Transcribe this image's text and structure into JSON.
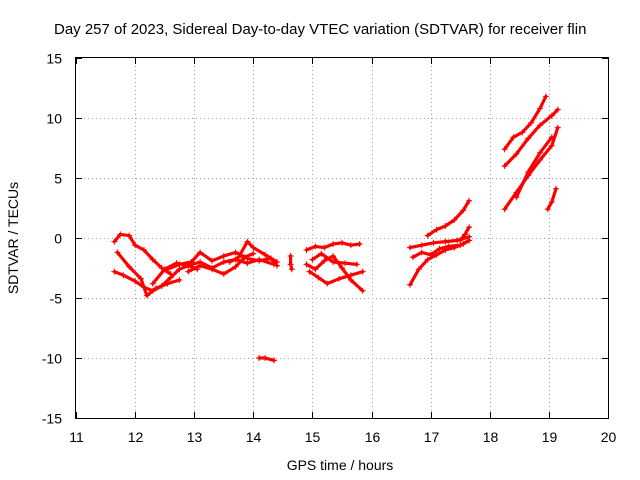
{
  "chart_data": {
    "type": "scatter",
    "title": "Day 257 of 2023, Sidereal Day-to-day VTEC variation (SDTVAR) for receiver flin",
    "xlabel": "GPS time / hours",
    "ylabel": "SDTVAR / TECUs",
    "xlim": [
      11,
      20
    ],
    "ylim": [
      -15,
      15
    ],
    "xticks": [
      "11",
      "12",
      "13",
      "14",
      "15",
      "16",
      "17",
      "18",
      "19",
      "20"
    ],
    "yticks": [
      "15",
      "10",
      "5",
      "0",
      "-5",
      "-10",
      "-15"
    ],
    "grid": true,
    "marker": "plus",
    "series_color": "#ff0000",
    "series": [
      {
        "name": "seg-1",
        "x": [
          11.65,
          11.75,
          11.9,
          12.0,
          12.15,
          12.3,
          12.45,
          12.6
        ],
        "y": [
          -0.3,
          0.3,
          0.2,
          -0.6,
          -1.0,
          -1.8,
          -2.5,
          -3.0
        ]
      },
      {
        "name": "seg-2",
        "x": [
          11.65,
          11.8,
          12.0,
          12.15,
          12.3,
          12.45,
          12.6,
          12.75,
          12.9,
          13.05
        ],
        "y": [
          -2.8,
          -3.1,
          -3.6,
          -4.1,
          -4.4,
          -4.0,
          -3.3,
          -2.6,
          -2.3,
          -2.6
        ]
      },
      {
        "name": "seg-3",
        "x": [
          11.7,
          11.9,
          12.1,
          12.2,
          12.35,
          12.55,
          12.75
        ],
        "y": [
          -1.2,
          -2.4,
          -3.4,
          -4.8,
          -4.2,
          -3.8,
          -3.5
        ]
      },
      {
        "name": "seg-4",
        "x": [
          12.3,
          12.5,
          12.7,
          12.9,
          13.1,
          13.3,
          13.5,
          13.7,
          13.9,
          14.1,
          14.35
        ],
        "y": [
          -3.8,
          -2.6,
          -2.1,
          -2.3,
          -2.0,
          -2.5,
          -2.0,
          -1.8,
          -2.1,
          -1.8,
          -2.2
        ]
      },
      {
        "name": "seg-5",
        "x": [
          12.55,
          12.75,
          12.95,
          13.1,
          13.3,
          13.5,
          13.7,
          13.9,
          14.1,
          14.3,
          14.4
        ],
        "y": [
          -2.6,
          -2.2,
          -2.0,
          -1.2,
          -1.9,
          -1.5,
          -1.2,
          -1.7,
          -1.9,
          -1.7,
          -2.3
        ]
      },
      {
        "name": "seg-6",
        "x": [
          12.9,
          13.1,
          13.3,
          13.5,
          13.7,
          13.85,
          14.0
        ],
        "y": [
          -2.8,
          -2.3,
          -2.6,
          -3.0,
          -2.4,
          -1.6,
          -1.3
        ]
      },
      {
        "name": "seg-7",
        "x": [
          13.6,
          13.75,
          13.9,
          14.0,
          14.2,
          14.4
        ],
        "y": [
          -2.0,
          -1.6,
          -0.3,
          -0.8,
          -1.4,
          -2.0
        ]
      },
      {
        "name": "seg-8",
        "x": [
          14.1,
          14.2,
          14.35
        ],
        "y": [
          -10.0,
          -10.0,
          -10.2
        ]
      },
      {
        "name": "seg-9",
        "x": [
          14.63,
          14.63,
          14.65
        ],
        "y": [
          -1.5,
          -2.2,
          -2.6
        ]
      },
      {
        "name": "seg-10",
        "x": [
          14.9,
          15.05,
          15.2,
          15.35,
          15.5,
          15.65,
          15.8
        ],
        "y": [
          -1.0,
          -0.7,
          -0.8,
          -0.5,
          -0.4,
          -0.6,
          -0.5
        ]
      },
      {
        "name": "seg-11",
        "x": [
          14.9,
          15.05,
          15.2,
          15.35,
          15.5,
          15.65,
          15.85
        ],
        "y": [
          -2.2,
          -2.6,
          -1.9,
          -1.5,
          -2.5,
          -3.5,
          -4.4
        ]
      },
      {
        "name": "seg-12",
        "x": [
          14.95,
          15.1,
          15.25,
          15.45,
          15.65,
          15.85
        ],
        "y": [
          -2.8,
          -3.3,
          -3.8,
          -3.4,
          -3.1,
          -2.8
        ]
      },
      {
        "name": "seg-13",
        "x": [
          15.0,
          15.15,
          15.35,
          15.55,
          15.75
        ],
        "y": [
          -1.8,
          -1.3,
          -2.0,
          -2.1,
          -2.2
        ]
      },
      {
        "name": "seg-14",
        "x": [
          16.65,
          16.8,
          16.95,
          17.1,
          17.25,
          17.4,
          17.55,
          17.65
        ],
        "y": [
          -3.9,
          -2.6,
          -1.8,
          -1.4,
          -1.0,
          -0.8,
          -0.5,
          -0.2
        ]
      },
      {
        "name": "seg-15",
        "x": [
          16.65,
          16.85,
          17.05,
          17.25,
          17.45,
          17.65
        ],
        "y": [
          -0.8,
          -0.6,
          -0.4,
          -0.3,
          -0.2,
          0.1
        ]
      },
      {
        "name": "seg-16",
        "x": [
          16.7,
          16.85,
          17.0,
          17.15,
          17.3,
          17.5,
          17.65
        ],
        "y": [
          -1.6,
          -1.2,
          -1.4,
          -0.9,
          -0.7,
          -0.6,
          -0.2
        ]
      },
      {
        "name": "seg-17",
        "x": [
          16.95,
          17.1,
          17.25,
          17.4,
          17.55,
          17.65
        ],
        "y": [
          0.2,
          0.7,
          1.0,
          1.5,
          2.3,
          3.1
        ]
      },
      {
        "name": "seg-18",
        "x": [
          17.5,
          17.58,
          17.65
        ],
        "y": [
          -0.2,
          0.3,
          0.9
        ]
      },
      {
        "name": "seg-19",
        "x": [
          18.25,
          18.4,
          18.55,
          18.7,
          18.85,
          18.95
        ],
        "y": [
          7.4,
          8.4,
          8.8,
          9.6,
          10.8,
          11.8
        ]
      },
      {
        "name": "seg-20",
        "x": [
          18.25,
          18.45,
          18.65,
          18.85,
          19.05,
          19.15
        ],
        "y": [
          6.0,
          7.0,
          8.3,
          9.4,
          10.2,
          10.7
        ]
      },
      {
        "name": "seg-21",
        "x": [
          18.25,
          18.45,
          18.65,
          18.85,
          19.05,
          19.15
        ],
        "y": [
          2.4,
          3.8,
          5.2,
          6.5,
          7.7,
          9.2
        ]
      },
      {
        "name": "seg-22",
        "x": [
          18.45,
          18.65,
          18.85,
          19.05
        ],
        "y": [
          3.4,
          5.5,
          7.1,
          8.4
        ]
      },
      {
        "name": "seg-23",
        "x": [
          18.98,
          19.05,
          19.12
        ],
        "y": [
          2.4,
          3.0,
          4.1
        ]
      }
    ]
  }
}
